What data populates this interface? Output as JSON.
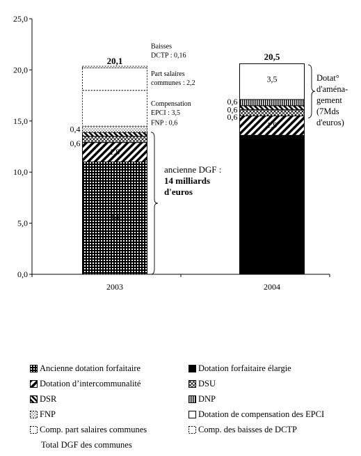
{
  "chart_data": {
    "type": "bar",
    "stacked": true,
    "categories": [
      "2003",
      "2004"
    ],
    "y_ticks": [
      "0,0",
      "5,0",
      "10,0",
      "15,0",
      "20,0",
      "25,0"
    ],
    "ylim": [
      0,
      25
    ],
    "grid": false,
    "legend_position": "bottom",
    "series": [
      {
        "name": "Ancienne dotation forfaitaire",
        "values": [
          11.0,
          0
        ],
        "pattern": "grid"
      },
      {
        "name": "Dotation forfaitaire élargie",
        "values": [
          0,
          13.6
        ],
        "pattern": "solid"
      },
      {
        "name": "Dotation d’intercommunalité",
        "values": [
          1.9,
          1.9
        ],
        "pattern": "diag"
      },
      {
        "name": "DSU",
        "values": [
          0.6,
          0.6
        ],
        "pattern": "cross"
      },
      {
        "name": "DSR",
        "values": [
          0.4,
          0.4
        ],
        "pattern": "diagbold"
      },
      {
        "name": "DNP",
        "values": [
          0,
          0.6
        ],
        "pattern": "vertical"
      },
      {
        "name": "FNP",
        "values": [
          0.6,
          0
        ],
        "pattern": "dots"
      },
      {
        "name": "Dotation de compensation des EPCI",
        "values": [
          3.5,
          3.5
        ],
        "pattern": "empty"
      },
      {
        "name": "Comp. part salaires communes",
        "values": [
          2.2,
          0
        ],
        "pattern": "dashed"
      },
      {
        "name": "Comp. des baisses de DCTP",
        "values": [
          0.16,
          0
        ],
        "pattern": "dashed"
      }
    ],
    "totals": [
      {
        "label": "20,1",
        "value": 20.1
      },
      {
        "label": "20,5",
        "value": 20.5
      }
    ],
    "total_series_name": "Total DGF des communes",
    "data_labels": [
      {
        "text": "1,9",
        "category": 0,
        "y": 12.0
      },
      {
        "text": "14",
        "category": 0,
        "y": 5.6
      },
      {
        "text": "1,9",
        "category": 1,
        "y": 14.6
      },
      {
        "text": "3,5",
        "category": 1,
        "y": 19.1
      },
      {
        "text": "0,4",
        "category": 0,
        "y": 14.2,
        "side": "left"
      },
      {
        "text": "0,6",
        "category": 0,
        "y": 12.8,
        "side": "left"
      },
      {
        "text": "0,6",
        "category": 1,
        "y": 16.9,
        "side": "left"
      },
      {
        "text": "0,6",
        "category": 1,
        "y": 16.1,
        "side": "left"
      },
      {
        "text": "0,6",
        "category": 1,
        "y": 15.4,
        "side": "left"
      }
    ],
    "annotations_2003": [
      {
        "lines": [
          "Baisses",
          "DCTP : 0,16"
        ],
        "y": 22.1
      },
      {
        "lines": [
          "Part salaires",
          "communes : 2,2"
        ],
        "y": 19.4
      },
      {
        "lines": [
          "Compensation",
          "EPCI : 3,5"
        ],
        "y": 16.5
      },
      {
        "lines": [
          "FNP : 0,6"
        ],
        "y": 14.6
      }
    ],
    "brace_left": {
      "lines": [
        "ancienne DGF :",
        "14 milliards",
        "d'euros"
      ],
      "bold_from": 1,
      "range": [
        0,
        13.9
      ]
    },
    "brace_right": {
      "lines": [
        "Dotat°",
        "d'aména-",
        "gement",
        "(7Mds",
        "d'euros)"
      ],
      "range": [
        15.3,
        20.5
      ]
    }
  }
}
